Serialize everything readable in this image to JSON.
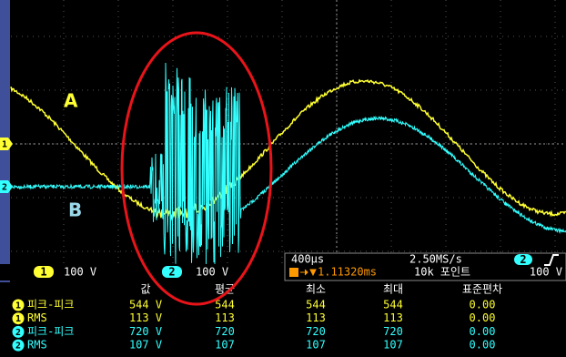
{
  "labels": {
    "a": "A",
    "b": "B"
  },
  "channel_markers": [
    "1",
    "2"
  ],
  "status": {
    "ch1": {
      "badge": "1",
      "scale": "100 V"
    },
    "ch2": {
      "badge": "2",
      "scale": "100 V"
    }
  },
  "timebase": {
    "horizontal_scale": "400µs",
    "sample_rate": "2.50MS/s",
    "trigger_channel": "2",
    "trigger_position": "1.11320ms",
    "record_length": "10k 포인트",
    "trigger_level": "100 V"
  },
  "measurements": {
    "columns": [
      "값",
      "평균",
      "최소",
      "최대",
      "표준편차"
    ],
    "rows": [
      {
        "channel": "1",
        "label": "피크-피크",
        "values": [
          "544 V",
          "544",
          "544",
          "544",
          "0.00"
        ]
      },
      {
        "channel": "1",
        "label": "RMS",
        "values": [
          "113 V",
          "113",
          "113",
          "113",
          "0.00"
        ]
      },
      {
        "channel": "2",
        "label": "피크-피크",
        "values": [
          "720 V",
          "720",
          "720",
          "720",
          "0.00"
        ]
      },
      {
        "channel": "2",
        "label": "RMS",
        "values": [
          "107 V",
          "107",
          "107",
          "107",
          "0.00"
        ]
      }
    ]
  }
}
